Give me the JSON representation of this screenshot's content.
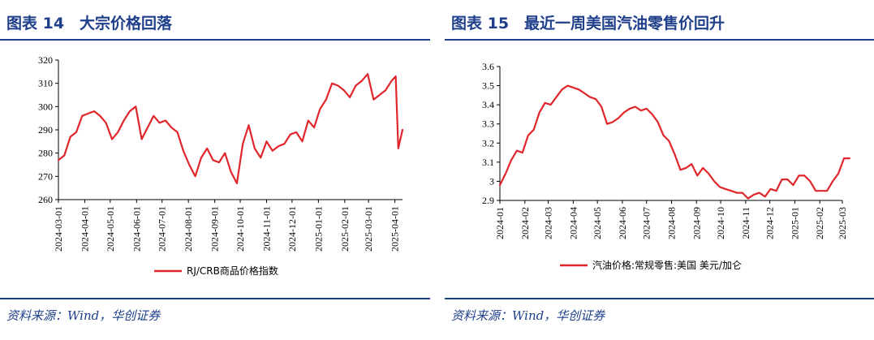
{
  "figures": [
    {
      "title": "图表 14　大宗价格回落",
      "source": "资料来源：Wind，华创证券"
    },
    {
      "title": "图表 15　最近一周美国汽油零售价回升",
      "source": "资料来源：Wind，华创证券"
    }
  ],
  "colors": {
    "accent": "#1f3f8a",
    "series": "#e0252b",
    "axis": "#000000"
  },
  "chart_data": [
    {
      "type": "line",
      "title": "",
      "xlabel": "",
      "ylabel": "",
      "ylim": [
        260,
        320
      ],
      "yticks": [
        260,
        270,
        280,
        290,
        300,
        310,
        320
      ],
      "xlim": [
        "2024-03-01",
        "2025-04-10"
      ],
      "xtick_labels": [
        "2024-03-01",
        "2024-04-01",
        "2024-05-01",
        "2024-06-01",
        "2024-07-01",
        "2024-08-01",
        "2024-09-01",
        "2024-10-01",
        "2024-11-01",
        "2024-12-01",
        "2025-01-01",
        "2025-02-01",
        "2025-03-01",
        "2025-04-01"
      ],
      "grid": false,
      "legend": "bottom-center",
      "series": [
        {
          "name": "RJ/CRB商品价格指数",
          "x": [
            "2024-03-01",
            "2024-03-08",
            "2024-03-15",
            "2024-03-22",
            "2024-03-29",
            "2024-04-05",
            "2024-04-12",
            "2024-04-19",
            "2024-04-26",
            "2024-05-03",
            "2024-05-10",
            "2024-05-17",
            "2024-05-24",
            "2024-05-31",
            "2024-06-07",
            "2024-06-14",
            "2024-06-21",
            "2024-06-28",
            "2024-07-05",
            "2024-07-12",
            "2024-07-19",
            "2024-07-26",
            "2024-08-02",
            "2024-08-09",
            "2024-08-16",
            "2024-08-23",
            "2024-08-30",
            "2024-09-06",
            "2024-09-13",
            "2024-09-20",
            "2024-09-27",
            "2024-10-04",
            "2024-10-11",
            "2024-10-18",
            "2024-10-25",
            "2024-11-01",
            "2024-11-08",
            "2024-11-15",
            "2024-11-22",
            "2024-11-29",
            "2024-12-06",
            "2024-12-13",
            "2024-12-20",
            "2024-12-27",
            "2025-01-03",
            "2025-01-10",
            "2025-01-17",
            "2025-01-24",
            "2025-01-31",
            "2025-02-07",
            "2025-02-14",
            "2025-02-21",
            "2025-02-28",
            "2025-03-07",
            "2025-03-14",
            "2025-03-21",
            "2025-03-28",
            "2025-04-02",
            "2025-04-05",
            "2025-04-10"
          ],
          "values": [
            277,
            279,
            287,
            289,
            296,
            297,
            298,
            296,
            293,
            286,
            289,
            294,
            298,
            300,
            286,
            291,
            296,
            293,
            294,
            291,
            289,
            281,
            275,
            270,
            278,
            282,
            277,
            276,
            280,
            272,
            267,
            284,
            292,
            282,
            278,
            285,
            281,
            283,
            284,
            288,
            289,
            285,
            294,
            291,
            299,
            303,
            310,
            309,
            307,
            304,
            309,
            311,
            314,
            303,
            305,
            307,
            311,
            313,
            282,
            290
          ]
        }
      ]
    },
    {
      "type": "line",
      "title": "",
      "xlabel": "",
      "ylabel": "",
      "ylim": [
        2.9,
        3.6
      ],
      "yticks": [
        2.9,
        3.0,
        3.1,
        3.2,
        3.3,
        3.4,
        3.5,
        3.6
      ],
      "xlim": [
        "2024-01",
        "2025-03"
      ],
      "xtick_labels": [
        "2024-01",
        "2024-02",
        "2024-03",
        "2024-04",
        "2024-05",
        "2024-06",
        "2024-07",
        "2024-08",
        "2024-09",
        "2024-10",
        "2024-11",
        "2024-12",
        "2025-01",
        "2025-02",
        "2025-03"
      ],
      "grid": false,
      "legend": "bottom-center",
      "series": [
        {
          "name": "汽油价格:常规零售:美国 美元/加仑",
          "x": [
            "2024-01-01",
            "2024-01-08",
            "2024-01-15",
            "2024-01-22",
            "2024-01-29",
            "2024-02-05",
            "2024-02-12",
            "2024-02-19",
            "2024-02-26",
            "2024-03-04",
            "2024-03-11",
            "2024-03-18",
            "2024-03-25",
            "2024-04-01",
            "2024-04-08",
            "2024-04-15",
            "2024-04-22",
            "2024-04-29",
            "2024-05-06",
            "2024-05-13",
            "2024-05-20",
            "2024-05-27",
            "2024-06-03",
            "2024-06-10",
            "2024-06-17",
            "2024-06-24",
            "2024-07-01",
            "2024-07-08",
            "2024-07-15",
            "2024-07-22",
            "2024-07-29",
            "2024-08-05",
            "2024-08-12",
            "2024-08-19",
            "2024-08-26",
            "2024-09-02",
            "2024-09-09",
            "2024-09-16",
            "2024-09-23",
            "2024-09-30",
            "2024-10-07",
            "2024-10-14",
            "2024-10-21",
            "2024-10-28",
            "2024-11-04",
            "2024-11-11",
            "2024-11-18",
            "2024-11-25",
            "2024-12-02",
            "2024-12-09",
            "2024-12-16",
            "2024-12-23",
            "2024-12-30",
            "2025-01-06",
            "2025-01-13",
            "2025-01-20",
            "2025-01-27",
            "2025-02-03",
            "2025-02-10",
            "2025-02-17",
            "2025-02-24",
            "2025-03-03",
            "2025-03-10"
          ],
          "values": [
            2.98,
            3.04,
            3.11,
            3.16,
            3.15,
            3.24,
            3.27,
            3.36,
            3.41,
            3.4,
            3.44,
            3.48,
            3.5,
            3.49,
            3.48,
            3.46,
            3.44,
            3.43,
            3.39,
            3.3,
            3.31,
            3.33,
            3.36,
            3.38,
            3.39,
            3.37,
            3.38,
            3.35,
            3.31,
            3.24,
            3.21,
            3.14,
            3.06,
            3.07,
            3.09,
            3.03,
            3.07,
            3.04,
            3.0,
            2.97,
            2.96,
            2.95,
            2.94,
            2.94,
            2.91,
            2.93,
            2.94,
            2.92,
            2.96,
            2.95,
            3.01,
            3.01,
            2.98,
            3.03,
            3.03,
            3.0,
            2.95,
            2.95,
            2.95,
            3.0,
            3.04,
            3.12,
            3.12
          ]
        }
      ]
    }
  ]
}
